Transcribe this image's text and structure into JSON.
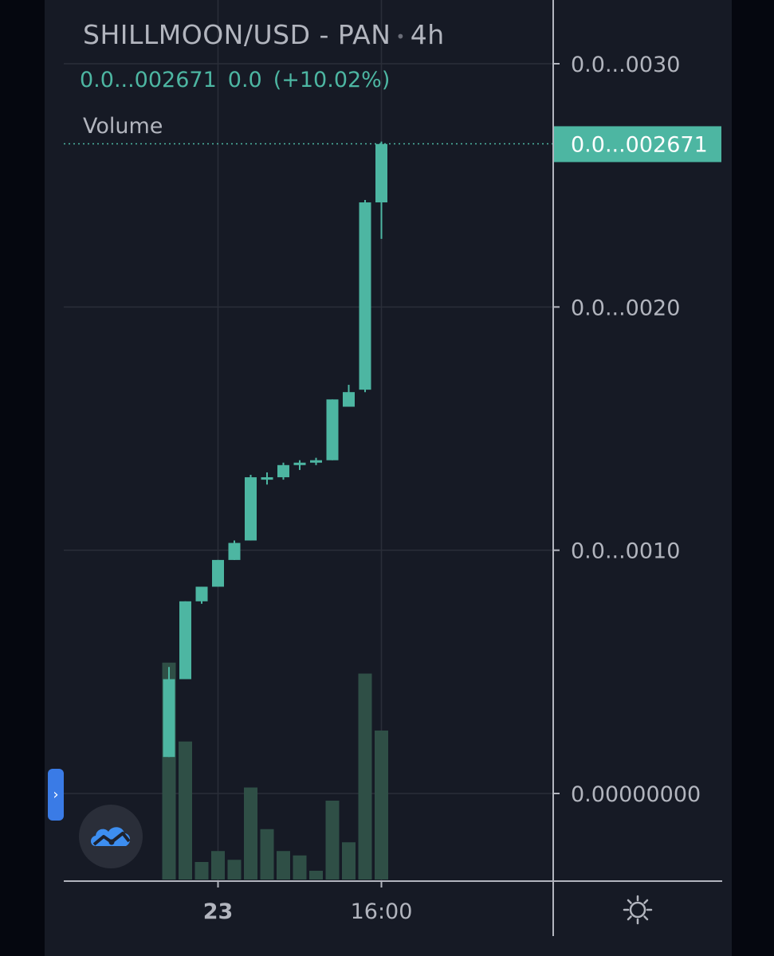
{
  "header": {
    "symbol": "SHILLMOON/USD - PAN",
    "separator": "•",
    "interval": "4h",
    "last_price": "0.0...002671",
    "change": "0.0",
    "change_pct": "(+10.02%)",
    "volume_label": "Volume"
  },
  "colors": {
    "background": "#161a25",
    "up": "#4db6a2",
    "volume": "#2f4f46",
    "grid": "#2a2e39",
    "text": "#b2b5be"
  },
  "price_axis": {
    "tick_labels": [
      "0.0...0030",
      "0.0...0020",
      "0.0...0010",
      "0.00000000"
    ],
    "tick_values": [
      0.003,
      0.002,
      0.001,
      0.0
    ],
    "current_label": "0.0...002671"
  },
  "time_axis": {
    "tick_labels": [
      "23",
      "16:00"
    ],
    "tick_bar_index": [
      3,
      13
    ]
  },
  "icons": {
    "toggle": "chevron-right-icon",
    "logo": "tradingview-cloud-icon",
    "settings": "settings-sun-icon"
  },
  "chart_data": {
    "type": "candlestick",
    "title": "SHILLMOON/USD - PAN",
    "interval": "4h",
    "ylim": [
      0.0,
      0.003
    ],
    "last_price": 0.002671,
    "candles": [
      {
        "open": 0.00015,
        "high": 0.00052,
        "low": 0.00015,
        "close": 0.00047
      },
      {
        "open": 0.00047,
        "high": 0.00079,
        "low": 0.00047,
        "close": 0.00079
      },
      {
        "open": 0.00079,
        "high": 0.00085,
        "low": 0.00078,
        "close": 0.00085
      },
      {
        "open": 0.00085,
        "high": 0.00096,
        "low": 0.00085,
        "close": 0.00096
      },
      {
        "open": 0.00096,
        "high": 0.00104,
        "low": 0.00096,
        "close": 0.00103
      },
      {
        "open": 0.00104,
        "high": 0.00131,
        "low": 0.00104,
        "close": 0.0013
      },
      {
        "open": 0.00129,
        "high": 0.00132,
        "low": 0.00127,
        "close": 0.0013
      },
      {
        "open": 0.0013,
        "high": 0.00136,
        "low": 0.00129,
        "close": 0.00135
      },
      {
        "open": 0.00135,
        "high": 0.00137,
        "low": 0.00133,
        "close": 0.00136
      },
      {
        "open": 0.00136,
        "high": 0.00138,
        "low": 0.00135,
        "close": 0.00137
      },
      {
        "open": 0.00137,
        "high": 0.00162,
        "low": 0.00137,
        "close": 0.00162
      },
      {
        "open": 0.00159,
        "high": 0.00168,
        "low": 0.00159,
        "close": 0.00165
      },
      {
        "open": 0.00166,
        "high": 0.00244,
        "low": 0.00165,
        "close": 0.00243
      },
      {
        "open": 0.00243,
        "high": 0.00268,
        "low": 0.00228,
        "close": 0.00267
      }
    ],
    "volume_scale": "relative, tallest bar = 1.0",
    "volumes": [
      0.99,
      0.63,
      0.08,
      0.13,
      0.09,
      0.42,
      0.23,
      0.13,
      0.11,
      0.04,
      0.36,
      0.17,
      0.94,
      0.68
    ]
  }
}
